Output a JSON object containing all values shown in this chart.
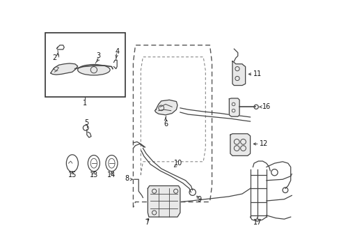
{
  "bg_color": "#ffffff",
  "fig_width": 4.9,
  "fig_height": 3.6,
  "dpi": 100,
  "line_color": "#444444",
  "fill_color": "#e8e8e8"
}
